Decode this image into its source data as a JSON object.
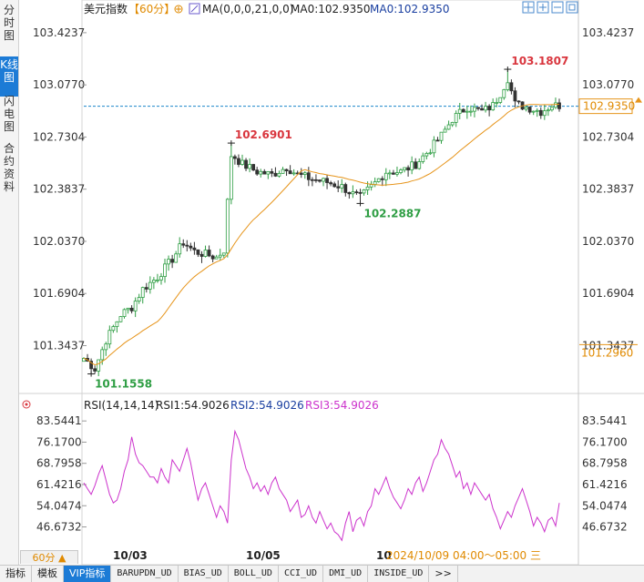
{
  "sidebar": {
    "tabs": [
      {
        "label": "分时图",
        "active": false
      },
      {
        "label": "K线图",
        "active": true
      },
      {
        "label": "闪电图",
        "active": false
      },
      {
        "label": "合约资料",
        "active": false
      }
    ]
  },
  "header": {
    "title": "美元指数",
    "period": "【60分】",
    "ma_label": "MA(0,0,0,21,0,0)",
    "ma0_label": "MA0:102.9350",
    "ma0_label2": "MA0:102.9350"
  },
  "rsi_header": {
    "label": "RSI(14,14,14)",
    "rsi1": "RSI1:54.9026",
    "rsi2": "RSI2:54.9026",
    "rsi3": "RSI3:54.9026"
  },
  "footer": {
    "period_button": "60分 ▲",
    "date_labels": [
      "10/03",
      "10/05",
      "10"
    ],
    "crosshair_time": "2024/10/09 04:00～05:00 三",
    "tabs": [
      "指标",
      "模板",
      "VIP指标",
      "BARUPDN_UD",
      "BIAS_UD",
      "BOLL_UD",
      "CCI_UD",
      "DMI_UD",
      "INSIDE_UD",
      ">>"
    ],
    "active_tab": "VIP指标"
  },
  "colors": {
    "up": "#2f9e44",
    "down": "#333333",
    "ma": "#e6941a",
    "rsi": "#cc33cc",
    "high_label": "#d9363e",
    "low_label": "#2f9e44",
    "current_line": "#1c86c9",
    "axis_text": "#333333"
  },
  "chart_data": [
    {
      "type": "candlestick",
      "name_text": "美元指数",
      "y_ticks": [
        "103.4237",
        "103.0770",
        "102.7304",
        "102.3837",
        "102.0370",
        "101.6904",
        "101.3437"
      ],
      "y_tick_values": [
        103.4237,
        103.077,
        102.7304,
        102.3837,
        102.037,
        101.6904,
        101.3437
      ],
      "ylim": [
        101.05,
        103.52
      ],
      "current_price": "102.9350",
      "current_value": 102.935,
      "lower_marker": "101.2960",
      "lower_marker_value": 101.296,
      "annotations": [
        {
          "text": "101.1558",
          "value": 101.1558,
          "index": 2,
          "type": "low"
        },
        {
          "text": "102.6901",
          "value": 102.6901,
          "index": 40,
          "type": "high"
        },
        {
          "text": "102.2887",
          "value": 102.2887,
          "index": 75,
          "type": "low"
        },
        {
          "text": "103.1807",
          "value": 103.1807,
          "index": 115,
          "type": "high"
        }
      ],
      "anchors": [
        [
          0,
          101.26
        ],
        [
          3,
          101.19
        ],
        [
          6,
          101.38
        ],
        [
          10,
          101.55
        ],
        [
          13,
          101.6
        ],
        [
          16,
          101.72
        ],
        [
          20,
          101.8
        ],
        [
          24,
          101.92
        ],
        [
          27,
          102.03
        ],
        [
          30,
          101.97
        ],
        [
          33,
          101.95
        ],
        [
          36,
          101.93
        ],
        [
          38,
          101.98
        ],
        [
          40,
          102.62
        ],
        [
          43,
          102.55
        ],
        [
          47,
          102.5
        ],
        [
          51,
          102.48
        ],
        [
          55,
          102.53
        ],
        [
          58,
          102.48
        ],
        [
          62,
          102.45
        ],
        [
          66,
          102.43
        ],
        [
          70,
          102.4
        ],
        [
          73,
          102.35
        ],
        [
          75,
          102.33
        ],
        [
          78,
          102.4
        ],
        [
          82,
          102.5
        ],
        [
          86,
          102.5
        ],
        [
          90,
          102.55
        ],
        [
          94,
          102.65
        ],
        [
          97,
          102.74
        ],
        [
          100,
          102.85
        ],
        [
          104,
          102.93
        ],
        [
          108,
          102.9
        ],
        [
          111,
          102.94
        ],
        [
          113,
          103.02
        ],
        [
          115,
          103.12
        ],
        [
          117,
          102.95
        ],
        [
          120,
          102.93
        ],
        [
          124,
          102.9
        ],
        [
          127,
          102.94
        ],
        [
          129,
          102.94
        ]
      ],
      "candle_count": 130
    },
    {
      "type": "line",
      "name_text": "RSI(14,14,14)",
      "y_ticks": [
        "83.5441",
        "76.1700",
        "68.7958",
        "61.4216",
        "54.0474",
        "46.6732"
      ],
      "y_tick_values": [
        83.5441,
        76.17,
        68.7958,
        61.4216,
        54.0474,
        46.6732
      ],
      "ylim": [
        40.5,
        85.5
      ],
      "series": [
        {
          "name": "RSI1",
          "values": [
            62,
            60,
            58,
            61,
            65,
            68,
            63,
            58,
            55,
            56,
            60,
            66,
            70,
            78,
            72,
            69,
            68,
            66,
            64,
            64,
            62,
            67,
            64,
            62,
            70,
            68,
            66,
            70,
            74,
            69,
            62,
            56,
            60,
            62,
            58,
            54,
            50,
            54,
            52,
            48,
            70,
            80,
            77,
            72,
            67,
            64,
            60,
            62,
            59,
            61,
            58,
            62,
            64,
            60,
            58,
            56,
            52,
            54,
            56,
            50,
            51,
            54,
            50,
            48,
            52,
            49,
            46,
            48,
            45,
            44,
            42,
            48,
            52,
            45,
            49,
            50,
            47,
            52,
            54,
            60,
            58,
            61,
            64,
            60,
            57,
            55,
            53,
            56,
            60,
            58,
            62,
            64,
            59,
            62,
            66,
            70,
            72,
            77,
            74,
            72,
            68,
            64,
            66,
            60,
            62,
            58,
            62,
            60,
            58,
            56,
            58,
            53,
            50,
            46,
            49,
            52,
            50,
            54,
            57,
            60,
            56,
            52,
            47,
            50,
            48,
            45,
            49,
            50,
            47,
            55
          ]
        }
      ]
    }
  ]
}
